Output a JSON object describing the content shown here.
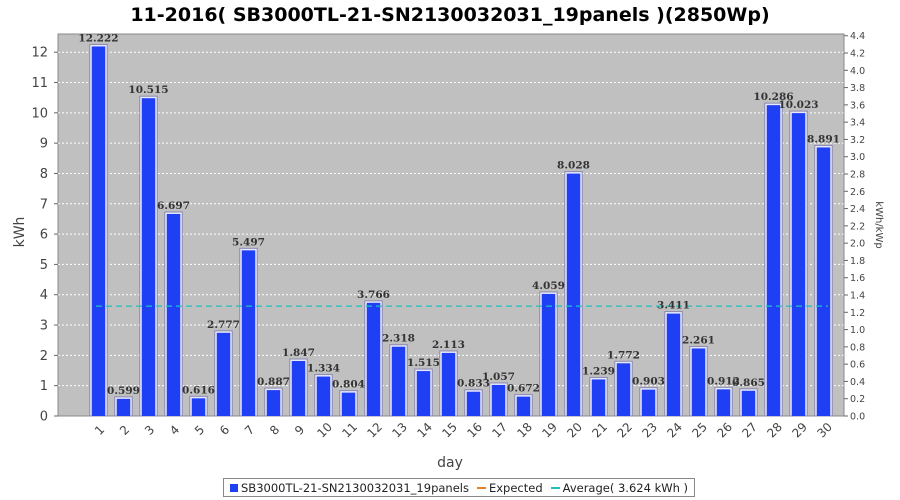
{
  "chart_data": {
    "type": "bar",
    "title": "11-2016( SB3000TL-21-SN2130032031_19panels )(2850Wp)",
    "xlabel": "day",
    "ylabel": "kWh",
    "ylabel_right": "kWh/kWp",
    "categories": [
      "1",
      "2",
      "3",
      "4",
      "5",
      "6",
      "7",
      "8",
      "9",
      "10",
      "11",
      "12",
      "13",
      "14",
      "15",
      "16",
      "17",
      "18",
      "19",
      "20",
      "21",
      "22",
      "23",
      "24",
      "25",
      "26",
      "27",
      "28",
      "29",
      "30"
    ],
    "series": [
      {
        "name": "SB3000TL-21-SN2130032031_19panels",
        "color": "#1f3ff5",
        "values": [
          12.222,
          0.599,
          10.515,
          6.697,
          0.616,
          2.777,
          5.497,
          0.887,
          1.847,
          1.334,
          0.804,
          3.766,
          2.318,
          1.515,
          2.113,
          0.833,
          1.057,
          0.672,
          4.059,
          8.028,
          1.239,
          1.772,
          0.903,
          3.411,
          2.261,
          0.912,
          0.865,
          10.286,
          10.023,
          8.891
        ],
        "labels": [
          "12.222",
          "0.599",
          "10.515",
          "6.697",
          "0.616",
          "2.777",
          "5.497",
          "0.887",
          "1.847",
          "1.334",
          "0.804",
          "3.766",
          "2.318",
          "1.515",
          "2.113",
          "0.833",
          "1.057",
          "0.672",
          "4.059",
          "8.028",
          "1.239",
          "1.772",
          "0.903",
          "3.411",
          "2.261",
          "0.912",
          "0.865",
          "10.286",
          "10.023",
          "8.891"
        ]
      }
    ],
    "average": 3.624,
    "ylim": [
      0,
      12.6
    ],
    "yticks": [
      0,
      1,
      2,
      3,
      4,
      5,
      6,
      7,
      8,
      9,
      10,
      11,
      12
    ],
    "y2lim": [
      0,
      4.42
    ],
    "y2ticks": [
      "0.0",
      "0.2",
      "0.4",
      "0.6",
      "0.8",
      "1.0",
      "1.2",
      "1.4",
      "1.6",
      "1.8",
      "2.0",
      "2.2",
      "2.4",
      "2.6",
      "2.8",
      "3.0",
      "3.2",
      "3.4",
      "3.6",
      "3.8",
      "4.0",
      "4.2",
      "4.4"
    ],
    "grid": true,
    "legend_position": "bottom",
    "colors": {
      "plot_background": "#c0c0c0",
      "bar": "#1f3ff5",
      "expected": "#f07f1b",
      "average": "#20c0c0"
    }
  },
  "legend": {
    "series_label": "SB3000TL-21-SN2130032031_19panels",
    "expected_label": "Expected",
    "average_label": "Average( 3.624 kWh )"
  }
}
